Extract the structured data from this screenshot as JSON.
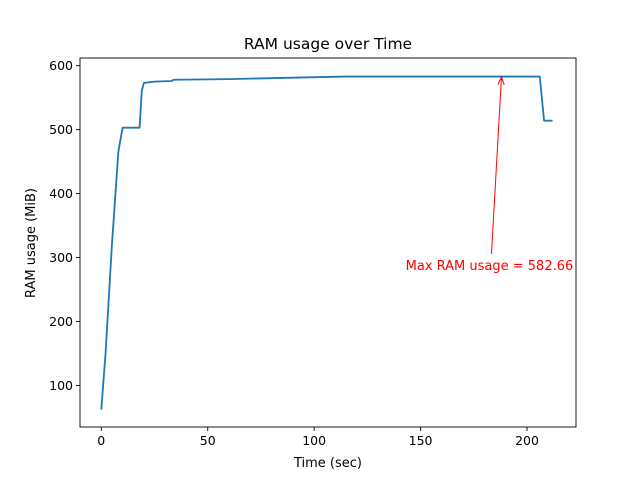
{
  "chart_data": {
    "type": "line",
    "title": "RAM usage over Time",
    "xlabel": "Time (sec)",
    "ylabel": "RAM usage (MiB)",
    "xlim": [
      -10,
      223
    ],
    "ylim": [
      35,
      612
    ],
    "xticks": [
      0,
      50,
      100,
      150,
      200
    ],
    "yticks": [
      100,
      200,
      300,
      400,
      500,
      600
    ],
    "grid": false,
    "series": [
      {
        "color": "#1f77b4",
        "x": [
          0,
          2,
          5,
          8,
          10,
          13,
          16,
          18,
          19,
          20,
          25,
          33,
          34,
          60,
          100,
          115,
          150,
          200,
          206,
          208,
          212
        ],
        "y": [
          62,
          150,
          320,
          465,
          503,
          503,
          503,
          503,
          560,
          573,
          575,
          576,
          578,
          579,
          582,
          583,
          583,
          583,
          583,
          514,
          514
        ]
      }
    ],
    "annotation": {
      "text": "Max RAM usage = 582.66",
      "color": "#ff0000",
      "point": [
        188,
        582.66
      ],
      "text_at": [
        180,
        287
      ]
    }
  }
}
